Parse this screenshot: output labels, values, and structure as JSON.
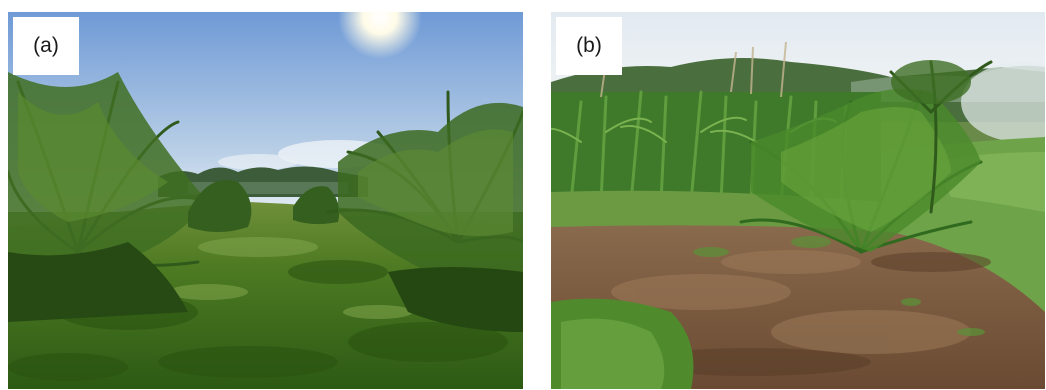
{
  "panels": [
    {
      "label": "(a)"
    },
    {
      "label": "(b)"
    }
  ],
  "colors": {
    "sky_a_top": "#6f9ad6",
    "sky_a_bottom": "#d8e6f2",
    "sky_b_top": "#dfe8f0",
    "sky_b_bottom": "#eef2f4",
    "ground_green": "#3f6e1c",
    "soil_brown": "#7a5a40",
    "palm_green": "#4e7a2a"
  }
}
